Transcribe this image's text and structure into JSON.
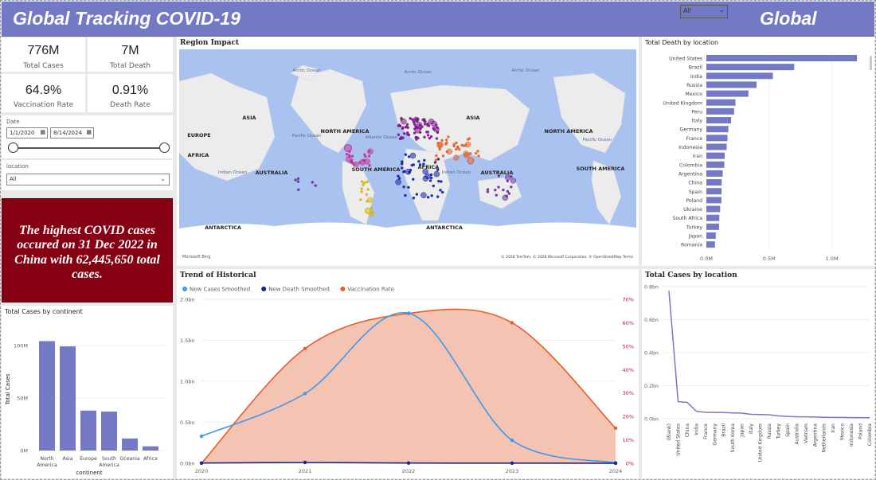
{
  "header": {
    "title": "Global Tracking COVID-19",
    "scope_label": "Global",
    "filter_value": "All"
  },
  "kpis": [
    {
      "value": "776M",
      "label": "Total Cases"
    },
    {
      "value": "7M",
      "label": "Total Death"
    },
    {
      "value": "64.9%",
      "label": "Vaccination Rate"
    },
    {
      "value": "0.91%",
      "label": "Death Rate"
    }
  ],
  "date_filter": {
    "label": "Date",
    "start": "1/1/2020",
    "end": "8/14/2024"
  },
  "location_filter": {
    "label": "location",
    "value": "All"
  },
  "banner": {
    "text": "The highest COVID cases occured on 31 Dec 2022  in China with 62,445,650 total cases."
  },
  "map": {
    "title": "Region Impact",
    "labels": [
      "Arctic Ocean",
      "Arctic Ocean",
      "Arctic Ocean",
      "EUROPE",
      "ASIA",
      "NORTH AMERICA",
      "ASIA",
      "NORTH AMERICA",
      "Pacific Ocean",
      "Atlantic Ocean",
      "Pacific Ocean",
      "AFRICA",
      "Indian Ocean",
      "AUSTRALIA",
      "SOUTH AMERICA",
      "AFRICA",
      "Indian Ocean",
      "AUSTRALIA",
      "SOUTH AMERICA",
      "ANTARCTICA",
      "ANTARCTICA"
    ],
    "attribution": "© 2028 TomTom, © 2028 Microsoft Corporation, © OpenStreetMap  Terms",
    "brand": "Microsoft Bing",
    "colors": {
      "ocean": "#a9c2ef",
      "land": "#ececec",
      "antarctica": "#ffffff"
    }
  },
  "deaths_by_location": {
    "title": "Total Death by location",
    "chart_data": {
      "type": "bar",
      "orientation": "horizontal",
      "categories": [
        "United States",
        "Brazil",
        "India",
        "Russia",
        "Mexico",
        "United Kingdom",
        "Peru",
        "Italy",
        "Germany",
        "France",
        "Indonesia",
        "Iran",
        "Colombia",
        "Argentina",
        "China",
        "Spain",
        "Poland",
        "Ukraine",
        "South Africa",
        "Turkey",
        "Japan",
        "Romania"
      ],
      "values": [
        1200000,
        700000,
        530000,
        400000,
        335000,
        232000,
        221000,
        197000,
        175000,
        168000,
        162000,
        146000,
        143000,
        130000,
        122000,
        121000,
        120000,
        110000,
        103000,
        101000,
        75000,
        68000
      ],
      "xlim": [
        0,
        1250000
      ],
      "xticks": [
        "0.0M",
        "0.5M",
        "1.0M"
      ],
      "xtick_values": [
        0,
        500000,
        1000000
      ],
      "color": "#7479c6"
    }
  },
  "trend": {
    "title": "Trend of Historical",
    "chart_data": {
      "type": "line",
      "x": [
        "2020",
        "2021",
        "2022",
        "2023",
        "2024"
      ],
      "series": [
        {
          "name": "New Cases Smoothed",
          "values": [
            330000000,
            850000000,
            1830000000,
            280000000,
            5000000
          ],
          "axis": "left",
          "color": "#3a99f0"
        },
        {
          "name": "New Death Smoothed",
          "values": [
            3000000,
            10000000,
            3000000,
            2000000,
            1000000
          ],
          "axis": "left",
          "color": "#12239e"
        },
        {
          "name": "Vaccination Rate",
          "values": [
            0,
            49,
            64,
            60,
            15
          ],
          "axis": "right",
          "color": "#e5602a",
          "fill": "#f4c3b2"
        }
      ],
      "ylim": [
        0,
        2000000000
      ],
      "yticks": [
        "0.0bn",
        "0.5bn",
        "1.0bn",
        "1.5bn",
        "2.0bn"
      ],
      "ytick_values": [
        0,
        500000000,
        1000000000,
        1500000000,
        2000000000
      ],
      "y2lim": [
        0,
        70
      ],
      "y2ticks": [
        "0%",
        "10%",
        "20%",
        "30%",
        "40%",
        "50%",
        "60%",
        "70%"
      ],
      "y2tick_values": [
        0,
        10,
        20,
        30,
        40,
        50,
        60,
        70
      ]
    }
  },
  "cases_by_continent": {
    "title": "Total Cases by continent",
    "chart_data": {
      "type": "bar",
      "categories": [
        "North America",
        "Asia",
        "Europe",
        "South America",
        "Oceania",
        "Africa"
      ],
      "category_lines": [
        [
          "North",
          "America"
        ],
        [
          "Asia"
        ],
        [
          "Europe"
        ],
        [
          "South",
          "America"
        ],
        [
          "Oceania"
        ],
        [
          "Africa"
        ]
      ],
      "values": [
        104000000,
        99000000,
        38000000,
        37000000,
        11500000,
        4000000
      ],
      "ylim": [
        0,
        115000000
      ],
      "yticks": [
        "0M",
        "50M",
        "100M"
      ],
      "ytick_values": [
        0,
        50000000,
        100000000
      ],
      "xlabel": "continent",
      "ylabel": "Total Cases",
      "color": "#7479c6"
    }
  },
  "cases_by_location": {
    "title": "Total Cases by location",
    "chart_data": {
      "type": "line",
      "categories": [
        "(Blank)",
        "United States",
        "China",
        "India",
        "France",
        "Germany",
        "Brazil",
        "South Korea",
        "Japan",
        "Italy",
        "United Kingdom",
        "Russia",
        "Turkey",
        "Spain",
        "Australia",
        "Vietnam",
        "Argentina",
        "Netherlands",
        "Iran",
        "Mexico",
        "Indonesia",
        "Poland",
        "Colombia"
      ],
      "values": [
        775000000,
        103000000,
        99000000,
        45000000,
        39000000,
        38000000,
        37000000,
        35000000,
        33500000,
        26700000,
        25000000,
        24000000,
        17000000,
        14000000,
        11800000,
        11600000,
        10100000,
        8600000,
        7600000,
        7600000,
        6800000,
        6700000,
        6400000
      ],
      "ylim": [
        0,
        800000000
      ],
      "yticks": [
        "0.0bn",
        "0.2bn",
        "0.4bn",
        "0.6bn",
        "0.8bn"
      ],
      "ytick_values": [
        0,
        200000000,
        400000000,
        600000000,
        800000000
      ],
      "color": "#7479c6"
    }
  }
}
